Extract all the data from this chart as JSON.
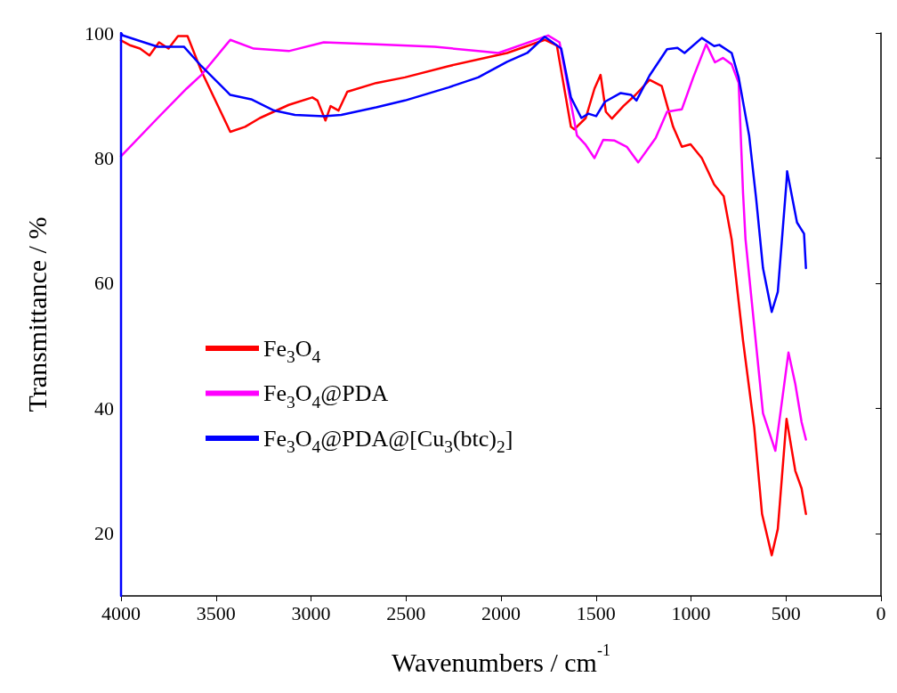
{
  "chart_data": {
    "type": "line",
    "xlabel": "Wavenumbers / cm$^{-1}$",
    "ylabel": "Transmittance / %",
    "xlim": [
      4000,
      0
    ],
    "xticks": [
      4000,
      3500,
      3000,
      2500,
      2000,
      1500,
      1000,
      500,
      0
    ],
    "ylim": [
      10,
      100
    ],
    "yticks": [
      20,
      40,
      60,
      80,
      100
    ],
    "grid": false,
    "legend": "left",
    "marker": "none",
    "series": [
      {
        "name": "Fe$_{3}$O$_{4}$",
        "color": "#ff0000",
        "x": [
          4000,
          3950,
          3900,
          3850,
          3800,
          3750,
          3700,
          3650,
          3577,
          3425,
          3347,
          3269,
          3117,
          2993,
          2966,
          2924,
          2897,
          2855,
          2809,
          2657,
          2506,
          2276,
          1968,
          1770,
          1706,
          1632,
          1614,
          1554,
          1508,
          1476,
          1448,
          1416,
          1356,
          1292,
          1218,
          1154,
          1094,
          1048,
          1002,
          943,
          878,
          828,
          786,
          726,
          667,
          626,
          575,
          543,
          497,
          451,
          418,
          395
        ],
        "values": [
          98.8,
          98,
          97.5,
          96.4,
          98.5,
          97.5,
          99.5,
          99.5,
          93.9,
          84.2,
          85,
          86.4,
          88.5,
          89.7,
          89.2,
          86,
          88.3,
          87.6,
          90.6,
          92,
          92.9,
          94.7,
          96.8,
          98.9,
          98,
          85,
          84.6,
          86.4,
          91.1,
          93.3,
          87.4,
          86.3,
          88.3,
          90.1,
          92.5,
          91.5,
          85,
          81.8,
          82.2,
          80,
          75.8,
          73.9,
          67,
          50.8,
          36.9,
          23.1,
          16.5,
          20.7,
          38.3,
          30,
          27.2,
          23.1
        ]
      },
      {
        "name": "Fe$_{3}$O$_{4}$@PDA",
        "color": "#ff00ff",
        "x": [
          4000,
          3807,
          3655,
          3577,
          3425,
          3301,
          3117,
          2933,
          2657,
          2349,
          2120,
          2014,
          1752,
          1692,
          1600,
          1554,
          1508,
          1462,
          1402,
          1338,
          1278,
          1186,
          1126,
          1048,
          988,
          920,
          874,
          832,
          786,
          749,
          726,
          713,
          667,
          621,
          556,
          487,
          451,
          418,
          395
        ],
        "values": [
          80.3,
          86.4,
          91.1,
          93.3,
          98.9,
          97.5,
          97.1,
          98.5,
          98.2,
          97.8,
          97.1,
          96.8,
          99.6,
          98.5,
          83.6,
          82.1,
          80,
          82.9,
          82.8,
          81.8,
          79.3,
          83.2,
          87.4,
          87.8,
          92.9,
          98.2,
          95.3,
          96,
          95,
          92,
          74.4,
          67,
          53.1,
          39.2,
          33.2,
          48.9,
          43.9,
          37.8,
          35
        ]
      },
      {
        "name": "Fe$_{3}$O$_{4}$@PDA@[Cu$_{3}$(btc)$_{2}$]",
        "color": "#0000ff",
        "x": [
          4000,
          4000,
          3991,
          3807,
          3669,
          3577,
          3425,
          3315,
          3195,
          3085,
          2933,
          2841,
          2657,
          2506,
          2276,
          2120,
          1968,
          1862,
          1770,
          1683,
          1632,
          1577,
          1540,
          1499,
          1453,
          1370,
          1315,
          1287,
          1218,
          1126,
          1071,
          1034,
          943,
          878,
          851,
          786,
          749,
          694,
          657,
          621,
          575,
          543,
          497,
          494,
          442,
          405,
          395
        ],
        "values": [
          10,
          100,
          99.6,
          97.8,
          97.8,
          94.7,
          90.1,
          89.4,
          87.6,
          86.9,
          86.7,
          86.9,
          88.1,
          89.2,
          91.3,
          92.9,
          95.4,
          96.8,
          99.4,
          97.5,
          89.7,
          86.4,
          87.1,
          86.7,
          89,
          90.4,
          90.1,
          89.2,
          93.2,
          97.4,
          97.6,
          96.8,
          99.2,
          97.9,
          98.1,
          96.8,
          92.9,
          83.6,
          73.5,
          62.4,
          55.4,
          58.6,
          76.3,
          77.9,
          69.7,
          67.9,
          62.4
        ]
      }
    ]
  }
}
